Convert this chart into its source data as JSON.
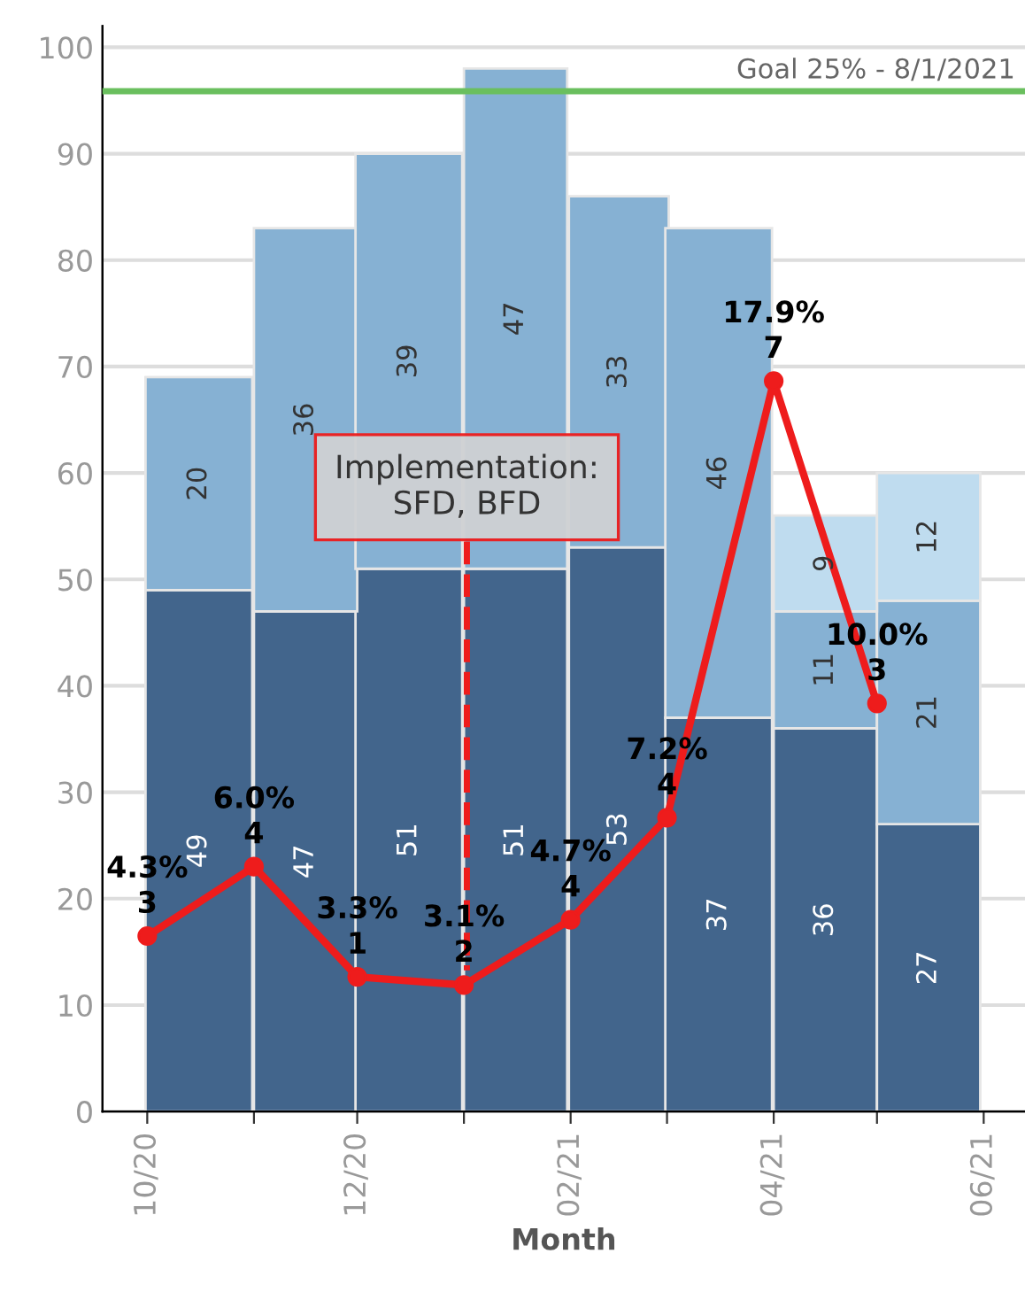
{
  "chart_data": {
    "type": "bar",
    "stacked": true,
    "xlabel": "Month",
    "x": [
      "2020-10-16",
      "2020-11-16",
      "2020-12-16",
      "2021-01-16",
      "2021-02-15",
      "2021-03-16",
      "2021-04-16",
      "2021-05-16"
    ],
    "series": [
      {
        "color": "#42658c",
        "values": [
          49,
          47,
          51,
          51,
          53,
          37,
          36,
          27
        ]
      },
      {
        "color": "#86b1d3",
        "values": [
          20,
          36,
          39,
          47,
          33,
          46,
          11,
          21
        ]
      },
      {
        "color": "#bfdcef",
        "values": [
          null,
          null,
          null,
          null,
          null,
          null,
          9,
          12
        ]
      },
      {
        "type": "line",
        "axis": "y2",
        "x": [
          "2020-10",
          "2020-11",
          "2020-12",
          "2021-01",
          "2021-02",
          "2021-03",
          "2021-04",
          "2021-05"
        ],
        "color": "#ee1c1c",
        "marker": "circle",
        "line_style": "solid",
        "values": [
          4.3,
          6.0,
          3.3,
          3.1,
          4.7,
          7.2,
          17.9,
          10.0
        ],
        "value_labels": [
          "4.3%\n3",
          "6.0%\n4",
          "3.3%\n1",
          "3.1%\n2",
          "4.7%\n4",
          "7.2%\n4",
          "17.9%\n7",
          "10.0%\n3"
        ]
      }
    ],
    "data_labels": true,
    "xlim": [
      "2020-09-18",
      "2021-06-13"
    ],
    "xticks": [
      {
        "value": "2020-10",
        "label": "10/20"
      },
      {
        "value": "2020-11",
        "label": null
      },
      {
        "value": "2020-12",
        "label": "12/20"
      },
      {
        "value": "2021-01",
        "label": null
      },
      {
        "value": "2021-02",
        "label": "02/21"
      },
      {
        "value": "2021-03",
        "label": null
      },
      {
        "value": "2021-04",
        "label": "04/21"
      },
      {
        "value": "2021-05",
        "label": null
      },
      {
        "value": "2021-06",
        "label": "06/21"
      }
    ],
    "ylim": [
      0,
      102
    ],
    "yticks": [
      0,
      10,
      20,
      30,
      40,
      50,
      60,
      70,
      80,
      90,
      100
    ],
    "y2lim": [
      0,
      26.6
    ],
    "tick_labels": "xy",
    "grid": "y",
    "ref_lines": [
      {
        "axis": "y2",
        "value": 25,
        "label": "Goal 25% - 8/1/2021",
        "color": "#6abf5e",
        "line_style": "solid"
      }
    ],
    "annotations": [
      "Implementation:\nSFD, BFD"
    ]
  }
}
